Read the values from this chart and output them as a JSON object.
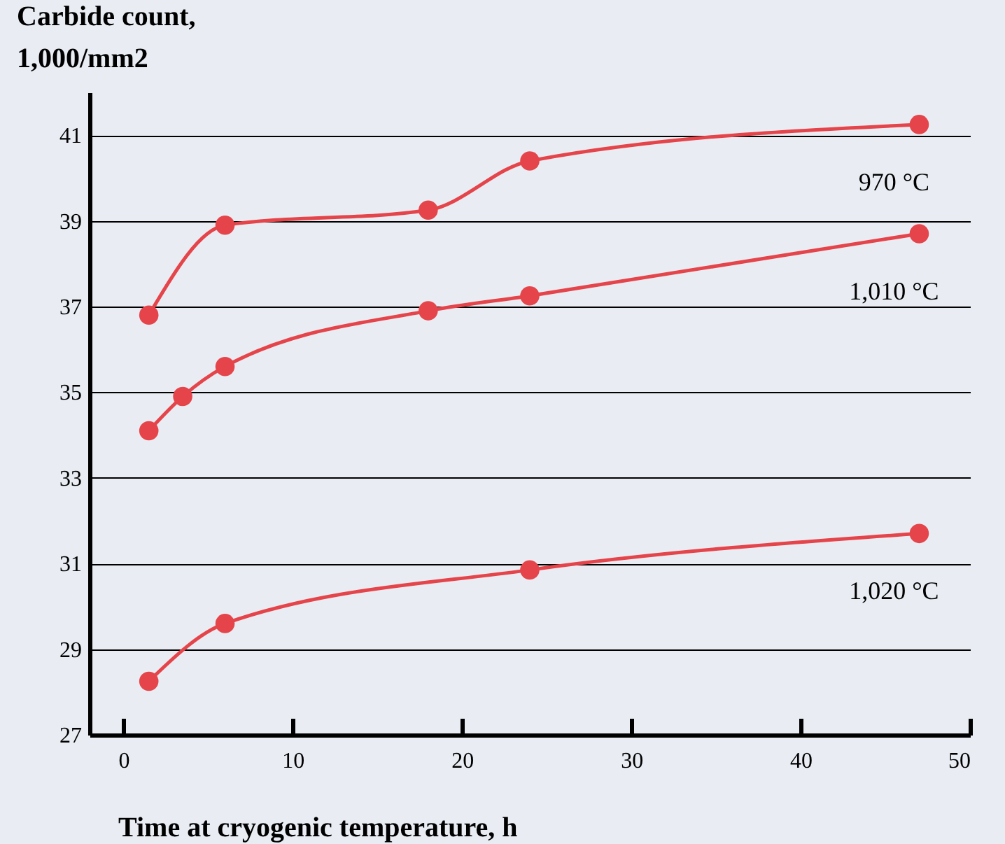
{
  "chart_data": {
    "type": "line",
    "title": [
      "Carbide count,",
      "1,000/mm2"
    ],
    "xlabel": "Time at cryogenic temperature, h",
    "xlim": [
      -2,
      50
    ],
    "xticks": [
      0,
      10,
      20,
      30,
      40,
      50
    ],
    "ylim": [
      27,
      42
    ],
    "yticks": [
      27,
      29,
      31,
      33,
      35,
      37,
      39,
      41
    ],
    "grid": "y",
    "marker": "circle",
    "line_style": "solid",
    "series": [
      {
        "name": "970 °C",
        "color": "#e5454a",
        "x": [
          1.5,
          6,
          18,
          24,
          47
        ],
        "values": [
          36.8,
          38.9,
          39.25,
          40.4,
          41.25
        ]
      },
      {
        "name": "1,010 °C",
        "color": "#e5454a",
        "x": [
          1.5,
          3.5,
          6,
          18,
          24,
          47
        ],
        "values": [
          34.1,
          34.9,
          35.6,
          36.9,
          37.25,
          38.7
        ]
      },
      {
        "name": "1,020 °C",
        "color": "#e5454a",
        "x": [
          1.5,
          6,
          24,
          47
        ],
        "values": [
          28.25,
          29.6,
          30.85,
          31.7
        ]
      }
    ]
  }
}
